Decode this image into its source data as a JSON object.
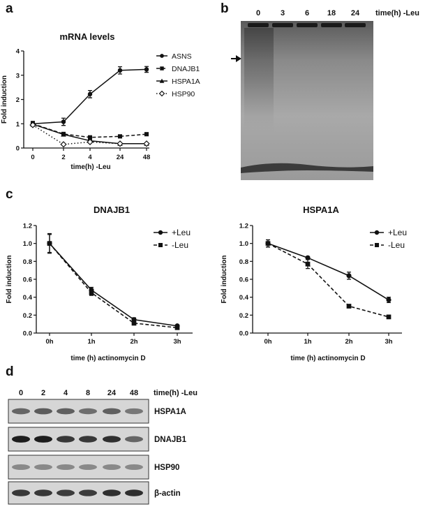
{
  "panels": {
    "a": "a",
    "b": "b",
    "c": "c",
    "d": "d"
  },
  "chart_data": [
    {
      "type": "line",
      "title": "mRNA levels",
      "xlabel": "time(h) -Leu",
      "ylabel": "Fold induction",
      "categories": [
        "0",
        "2",
        "4",
        "24",
        "48"
      ],
      "ylim": [
        0,
        4
      ],
      "yticks": [
        "0",
        "1",
        "2",
        "3",
        "4"
      ],
      "series": [
        {
          "name": "ASNS",
          "marker": "circle",
          "dash": "solid",
          "values": [
            1.0,
            1.08,
            2.22,
            3.2,
            3.24
          ],
          "err": [
            0.1,
            0.15,
            0.15,
            0.15,
            0.12
          ]
        },
        {
          "name": "DNAJB1",
          "marker": "square",
          "dash": "dashed",
          "values": [
            1.0,
            0.58,
            0.44,
            0.48,
            0.57
          ],
          "err": [
            0.05,
            0.04,
            0.05,
            0.03,
            0.03
          ]
        },
        {
          "name": "HSPA1A",
          "marker": "triangle",
          "dash": "solid",
          "values": [
            0.98,
            0.56,
            0.3,
            0.18,
            0.18
          ],
          "err": [
            0.05,
            0.04,
            0.04,
            0.03,
            0.03
          ]
        },
        {
          "name": "HSP90",
          "marker": "diamond",
          "dash": "dotted",
          "values": [
            0.95,
            0.15,
            0.25,
            0.18,
            0.18
          ],
          "err": [
            0.05,
            0.03,
            0.03,
            0.03,
            0.03
          ]
        }
      ]
    },
    {
      "type": "line",
      "title": "DNAJB1",
      "xlabel": "time (h) actinomycin  D",
      "ylabel": "Fold induction",
      "categories": [
        "0h",
        "1h",
        "2h",
        "3h"
      ],
      "ylim": [
        0,
        1.2
      ],
      "yticks": [
        "0.0",
        "0.2",
        "0.4",
        "0.6",
        "0.8",
        "1.0",
        "1.2"
      ],
      "series": [
        {
          "name": "+Leu",
          "marker": "circle",
          "dash": "solid",
          "values": [
            1.0,
            0.48,
            0.15,
            0.08
          ],
          "err": [
            0.1,
            0.03,
            0.02,
            0.01
          ]
        },
        {
          "name": "-Leu",
          "marker": "square",
          "dash": "dashed",
          "values": [
            1.0,
            0.45,
            0.11,
            0.06
          ],
          "err": [
            0.11,
            0.03,
            0.02,
            0.01
          ]
        }
      ]
    },
    {
      "type": "line",
      "title": "HSPA1A",
      "xlabel": "time (h) actinomycin  D",
      "ylabel": "Fold induction",
      "categories": [
        "0h",
        "1h",
        "2h",
        "3h"
      ],
      "ylim": [
        0,
        1.2
      ],
      "yticks": [
        "0.0",
        "0.2",
        "0.4",
        "0.6",
        "0.8",
        "1.0",
        "1.2"
      ],
      "series": [
        {
          "name": "+Leu",
          "marker": "circle",
          "dash": "solid",
          "values": [
            1.0,
            0.84,
            0.64,
            0.37
          ],
          "err": [
            0.04,
            0.01,
            0.04,
            0.03
          ]
        },
        {
          "name": "-Leu",
          "marker": "square",
          "dash": "dashed",
          "values": [
            1.0,
            0.77,
            0.3,
            0.18
          ],
          "err": [
            0.04,
            0.05,
            0.01,
            0.01
          ]
        }
      ]
    }
  ],
  "gel_b": {
    "time_label": "time(h) -Leu",
    "lanes": [
      "0",
      "3",
      "6",
      "18",
      "24"
    ]
  },
  "blot_d": {
    "time_label": "time(h) -Leu",
    "lanes": [
      "0",
      "2",
      "4",
      "8",
      "24",
      "48"
    ],
    "rows": [
      {
        "label": "HSPA1A",
        "intensity": [
          0.55,
          0.6,
          0.58,
          0.5,
          0.58,
          0.45
        ]
      },
      {
        "label": "DNAJB1",
        "intensity": [
          0.95,
          0.95,
          0.8,
          0.8,
          0.85,
          0.55
        ]
      },
      {
        "label": "HSP90",
        "intensity": [
          0.35,
          0.35,
          0.35,
          0.35,
          0.35,
          0.35
        ]
      },
      {
        "label": "β-actin",
        "intensity": [
          0.8,
          0.8,
          0.78,
          0.78,
          0.85,
          0.85
        ]
      }
    ]
  }
}
